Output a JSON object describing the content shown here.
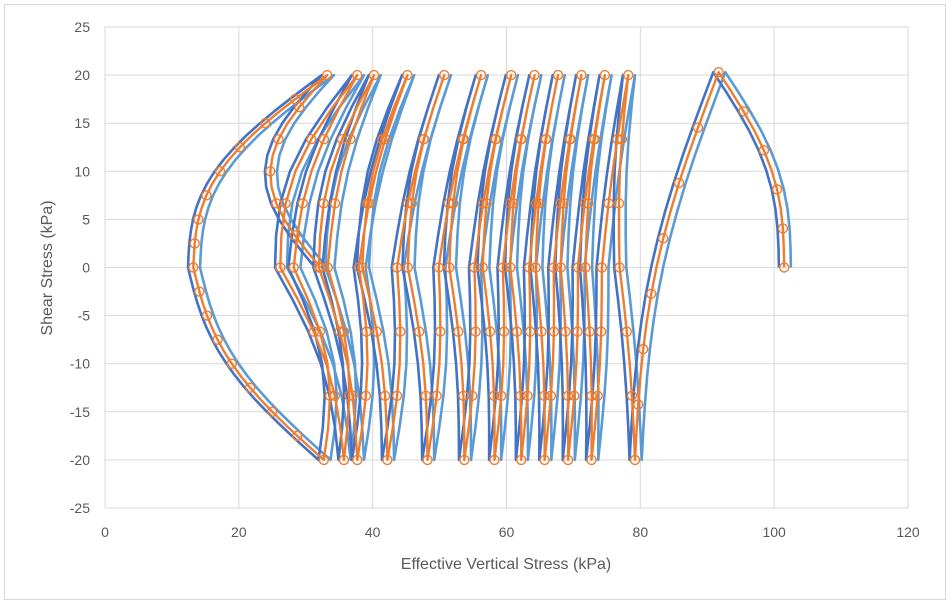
{
  "chart_data": {
    "type": "scatter",
    "title": "",
    "xlabel": "Effective Vertical Stress (kPa)",
    "ylabel": "Shear Stress (kPa)",
    "xlim": [
      0,
      120
    ],
    "ylim": [
      -25,
      25
    ],
    "x_ticks": [
      0,
      20,
      40,
      60,
      80,
      100,
      120
    ],
    "y_ticks": [
      -25,
      -20,
      -15,
      -10,
      -5,
      0,
      5,
      10,
      15,
      20,
      25
    ],
    "grid": true,
    "legend": "none",
    "colors": {
      "measured": "#ED7D31",
      "model_a": "#4472C4",
      "model_b": "#5B9BD5",
      "grid": "#d9d9d9"
    },
    "cycle_peaks": [
      33,
      37.5,
      40,
      45,
      50.5,
      56,
      60.5,
      64,
      67.5,
      71,
      74.5,
      78
    ],
    "cycle_troughs": [
      32.5,
      35.5,
      37.5,
      42,
      48,
      53.5,
      58,
      62,
      65.5,
      69,
      72.5
    ],
    "final_loop": {
      "start": [
        79,
        -20
      ],
      "peak": [
        91.5,
        20.3
      ],
      "end": [
        101.3,
        0
      ]
    },
    "first_cycle_min_x": 13,
    "series": [
      {
        "name": "",
        "style": "markers",
        "color": "#ED7D31"
      },
      {
        "name": "",
        "style": "line",
        "color": "#4472C4"
      },
      {
        "name": "",
        "style": "line",
        "color": "#5B9BD5"
      }
    ]
  }
}
